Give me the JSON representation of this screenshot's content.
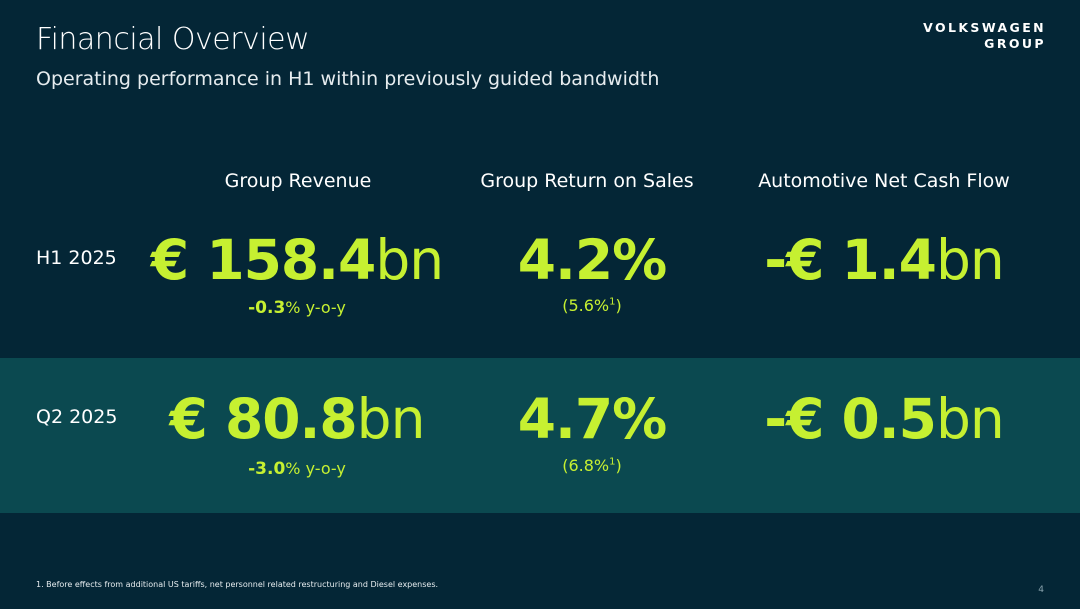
{
  "header": {
    "title": "Financial Overview",
    "subtitle": "Operating performance in H1 within previously guided bandwidth",
    "logo_line1": "VOLKSWAGEN",
    "logo_line2": "GROUP"
  },
  "columns": {
    "revenue": "Group Revenue",
    "ros": "Group Return on Sales",
    "cashflow": "Automotive Net Cash Flow"
  },
  "rows": {
    "h1": {
      "label": "H1 2025",
      "revenue_prefix": "€ ",
      "revenue_number": "158.4",
      "revenue_unit": "bn",
      "revenue_change": "-0.3",
      "revenue_change_suffix": "% y-o-y",
      "ros_value": "4.2%",
      "ros_note": "(5.6%",
      "ros_note_sup": "1",
      "ros_note_close": ")",
      "cashflow_prefix": "-€ ",
      "cashflow_number": "1.4",
      "cashflow_unit": "bn"
    },
    "q2": {
      "label": "Q2 2025",
      "revenue_prefix": "€ ",
      "revenue_number": "80.8",
      "revenue_unit": "bn",
      "revenue_change": "-3.0",
      "revenue_change_suffix": "% y-o-y",
      "ros_value": "4.7%",
      "ros_note": "(6.8%",
      "ros_note_sup": "1",
      "ros_note_close": ")",
      "cashflow_prefix": "-€ ",
      "cashflow_number": "0.5",
      "cashflow_unit": "bn"
    }
  },
  "footnote": "1. Before effects from additional US tariffs, net personnel related restructuring and Diesel expenses.",
  "page_number": "4",
  "colors": {
    "background": "#042636",
    "band": "#0b4950",
    "accent": "#c6f031"
  }
}
